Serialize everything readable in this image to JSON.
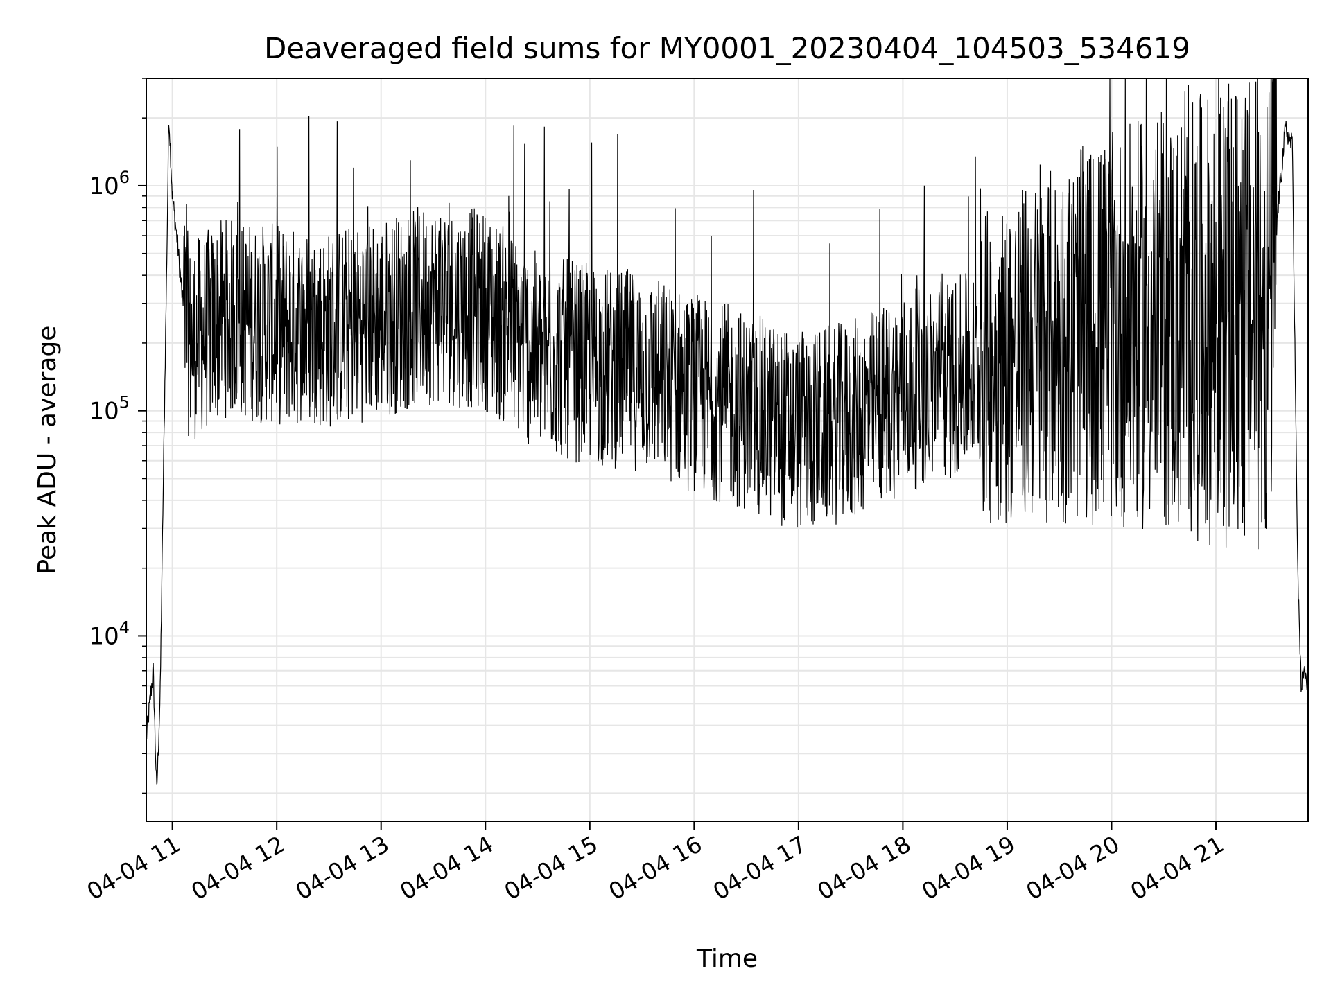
{
  "chart_data": {
    "type": "line",
    "title": "Deaveraged field sums for MY0001_20230404_104503_534619",
    "xlabel": "Time",
    "ylabel": "Peak ADU - average",
    "y_scale": "log",
    "ylim": [
      1500,
      3000000
    ],
    "xlim": [
      "2023-04-04 10:45",
      "2023-04-04 21:53"
    ],
    "x_ticks": [
      {
        "label": "04-04 11",
        "value": "2023-04-04 11:00"
      },
      {
        "label": "04-04 12",
        "value": "2023-04-04 12:00"
      },
      {
        "label": "04-04 13",
        "value": "2023-04-04 13:00"
      },
      {
        "label": "04-04 14",
        "value": "2023-04-04 14:00"
      },
      {
        "label": "04-04 15",
        "value": "2023-04-04 15:00"
      },
      {
        "label": "04-04 16",
        "value": "2023-04-04 16:00"
      },
      {
        "label": "04-04 17",
        "value": "2023-04-04 17:00"
      },
      {
        "label": "04-04 18",
        "value": "2023-04-04 18:00"
      },
      {
        "label": "04-04 19",
        "value": "2023-04-04 19:00"
      },
      {
        "label": "04-04 20",
        "value": "2023-04-04 20:00"
      },
      {
        "label": "04-04 21",
        "value": "2023-04-04 21:00"
      }
    ],
    "y_ticks": [
      {
        "base": "10",
        "exp": "4",
        "value": 10000
      },
      {
        "base": "10",
        "exp": "5",
        "value": 100000
      },
      {
        "base": "10",
        "exp": "6",
        "value": 1000000
      }
    ],
    "grid": true,
    "line_color": "#000000",
    "grid_color": "#e6e6e6",
    "series": [
      {
        "points": [
          [
            "2023-04-04 10:45",
            3500
          ],
          [
            "2023-04-04 10:47",
            5000
          ],
          [
            "2023-04-04 10:49",
            7000
          ],
          [
            "2023-04-04 10:51",
            2000
          ],
          [
            "2023-04-04 10:53",
            5500
          ],
          [
            "2023-04-04 10:55",
            60000
          ],
          [
            "2023-04-04 10:57",
            600000
          ],
          [
            "2023-04-04 10:58",
            2100000
          ],
          [
            "2023-04-04 11:00",
            900000
          ],
          [
            "2023-04-04 11:03",
            550000
          ],
          [
            "2023-04-04 11:06",
            300000
          ],
          [
            "2023-04-04 11:10",
            200000
          ],
          [
            "2023-04-04 11:30",
            260000
          ],
          [
            "2023-04-04 12:00",
            240000
          ],
          [
            "2023-04-04 12:30",
            230000
          ],
          [
            "2023-04-04 13:00",
            260000
          ],
          [
            "2023-04-04 13:30",
            300000
          ],
          [
            "2023-04-04 14:00",
            280000
          ],
          [
            "2023-04-04 14:30",
            180000
          ],
          [
            "2023-04-04 15:00",
            160000
          ],
          [
            "2023-04-04 15:30",
            150000
          ],
          [
            "2023-04-04 16:00",
            120000
          ],
          [
            "2023-04-04 16:30",
            100000
          ],
          [
            "2023-04-04 17:00",
            80000
          ],
          [
            "2023-04-04 17:30",
            90000
          ],
          [
            "2023-04-04 18:00",
            120000
          ],
          [
            "2023-04-04 18:30",
            140000
          ],
          [
            "2023-04-04 19:00",
            170000
          ],
          [
            "2023-04-04 19:30",
            200000
          ],
          [
            "2023-04-04 20:00",
            230000
          ],
          [
            "2023-04-04 20:30",
            250000
          ],
          [
            "2023-04-04 21:00",
            260000
          ],
          [
            "2023-04-04 21:30",
            270000
          ],
          [
            "2023-04-04 21:35",
            700000
          ],
          [
            "2023-04-04 21:40",
            1800000
          ],
          [
            "2023-04-04 21:44",
            1500000
          ],
          [
            "2023-04-04 21:47",
            20000
          ],
          [
            "2023-04-04 21:49",
            6000
          ],
          [
            "2023-04-04 21:51",
            7000
          ],
          [
            "2023-04-04 21:53",
            5500
          ]
        ]
      }
    ]
  }
}
